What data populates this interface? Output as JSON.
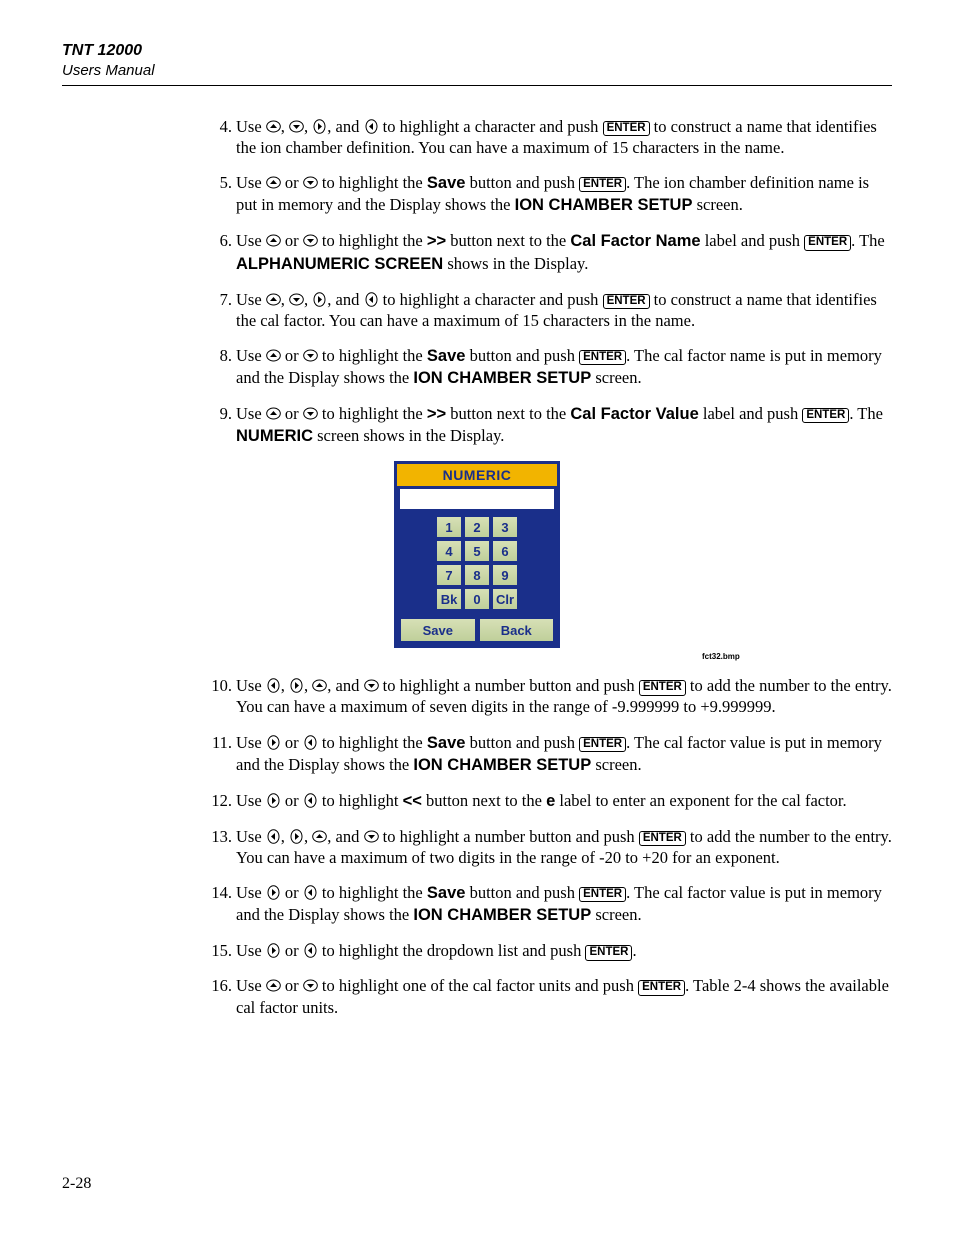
{
  "header": {
    "title": "TNT 12000",
    "subtitle": "Users Manual"
  },
  "enter_label": "ENTER",
  "arrow_icons": {
    "up": "up-arrow-icon",
    "down": "down-arrow-icon",
    "left": "left-arrow-icon",
    "right": "right-arrow-icon"
  },
  "steps": [
    {
      "n": "4.",
      "pre": "Use ",
      "arrows": [
        "up",
        "down",
        "right",
        "left"
      ],
      "mid1": " to highlight a character and push ",
      "mid2": " to construct a name that identifies the ion chamber definition. You can have a maximum of 15 characters in the name."
    },
    {
      "n": "5.",
      "pre": "Use ",
      "arrows": [
        "up",
        "down"
      ],
      "mid1": " to highlight the ",
      "bold1": "Save",
      "mid2": " button and push ",
      "mid3": ". The ion chamber definition name is put in memory and the Display shows the ",
      "bold2": "ION CHAMBER SETUP",
      "mid4": " screen."
    },
    {
      "n": "6.",
      "pre": "Use ",
      "arrows": [
        "up",
        "down"
      ],
      "mid1": " to highlight the ",
      "bold1": ">>",
      "mid2": " button next to the ",
      "bold2": "Cal Factor Name",
      "mid3": " label and push ",
      "mid4": ". The ",
      "bold3": "ALPHANUMERIC SCREEN",
      "mid5": " shows in the Display."
    },
    {
      "n": "7.",
      "pre": "Use ",
      "arrows": [
        "up",
        "down",
        "right",
        "left"
      ],
      "mid1": " to highlight a character and push ",
      "mid2": " to construct a name that identifies the cal factor. You can have a maximum of 15 characters in the name."
    },
    {
      "n": "8.",
      "pre": "Use ",
      "arrows": [
        "up",
        "down"
      ],
      "mid1": " to highlight the ",
      "bold1": "Save",
      "mid2": " button and push ",
      "mid3": ". The cal factor name is put in memory and the Display shows the ",
      "bold2": "ION CHAMBER SETUP",
      "mid4": " screen."
    },
    {
      "n": "9.",
      "pre": "Use ",
      "arrows": [
        "up",
        "down"
      ],
      "mid1": " to highlight the ",
      "bold1": ">>",
      "mid2": " button next to the ",
      "bold2": "Cal Factor Value",
      "mid3": " label and push ",
      "mid4": ". The ",
      "bold3": "NUMERIC",
      "mid5": " screen shows in the Display."
    },
    {
      "n": "10.",
      "pre": "Use ",
      "arrows": [
        "left",
        "right",
        "up",
        "down"
      ],
      "mid1": " to highlight a number button and push ",
      "mid2": " to add the number to the entry. You can have a maximum of seven digits in the range of -9.999999 to +9.999999."
    },
    {
      "n": "11.",
      "pre": "Use ",
      "arrows": [
        "right",
        "left"
      ],
      "mid1": " to highlight the ",
      "bold1": "Save",
      "mid2": " button and push ",
      "mid3": ". The cal factor value is put in memory and the Display shows the ",
      "bold2": "ION CHAMBER SETUP",
      "mid4": " screen."
    },
    {
      "n": "12.",
      "pre": "Use ",
      "arrows": [
        "right",
        "left"
      ],
      "mid1": " to highlight ",
      "bold1": "<<",
      "mid2": " button next to the ",
      "bold2": "e",
      "mid3": " label to enter an exponent for the cal factor."
    },
    {
      "n": "13.",
      "pre": "Use ",
      "arrows": [
        "left",
        "right",
        "up",
        "down"
      ],
      "mid1": " to highlight a number button and push ",
      "mid2": " to add the number to the entry. You can have a maximum of two digits in the range of -20 to +20 for an exponent."
    },
    {
      "n": "14.",
      "pre": "Use ",
      "arrows": [
        "right",
        "left"
      ],
      "mid1": " to highlight the ",
      "bold1": "Save",
      "mid2": " button and push ",
      "mid3": ". The cal factor value is put in memory and the Display shows the ",
      "bold2": "ION CHAMBER SETUP",
      "mid4": " screen."
    },
    {
      "n": "15.",
      "pre": "Use ",
      "arrows": [
        "right",
        "left"
      ],
      "mid1": " to highlight the dropdown list and push ",
      "mid2": "."
    },
    {
      "n": "16.",
      "pre": "Use ",
      "arrows": [
        "up",
        "down"
      ],
      "mid1": " to highlight one of the cal factor units and push ",
      "mid2": ". Table 2-4 shows the available cal factor units."
    }
  ],
  "figure": {
    "title": "NUMERIC",
    "keys": [
      [
        "1",
        "2",
        "3"
      ],
      [
        "4",
        "5",
        "6"
      ],
      [
        "7",
        "8",
        "9"
      ],
      [
        "Bk",
        "0",
        "Clr"
      ]
    ],
    "save": "Save",
    "back": "Back",
    "caption": "fct32.bmp",
    "colors": {
      "border": "#1a2f8a",
      "title_bg": "#f2b400",
      "title_fg": "#1a2f8a",
      "key_bg_top": "#d7e0b6",
      "key_bg_bottom": "#bfcf9a",
      "entry_bg": "#ffffff"
    }
  },
  "page_number": "2-28"
}
